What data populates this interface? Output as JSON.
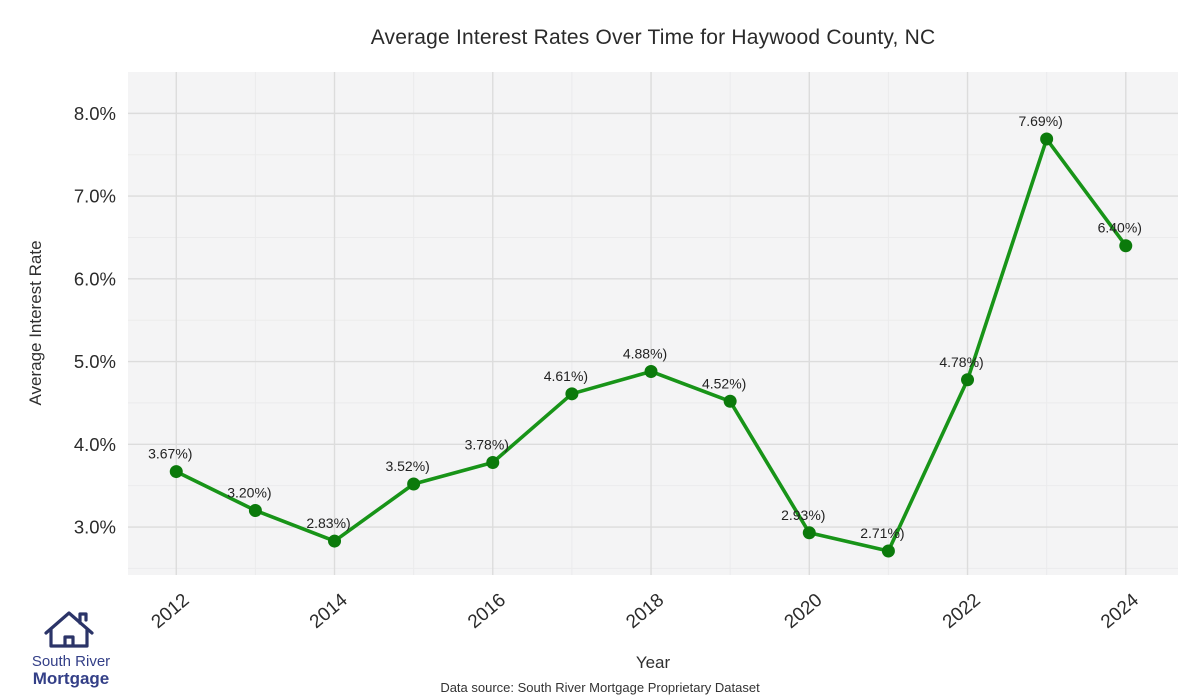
{
  "chart_data": {
    "type": "line",
    "title": "Average Interest Rates Over Time for Haywood County, NC",
    "xlabel": "Year",
    "ylabel": "Average Interest Rate",
    "x": [
      2012,
      2013,
      2014,
      2015,
      2016,
      2017,
      2018,
      2019,
      2020,
      2021,
      2022,
      2023,
      2024
    ],
    "values": [
      3.67,
      3.2,
      2.83,
      3.52,
      3.78,
      4.61,
      4.88,
      4.52,
      2.93,
      2.71,
      4.78,
      7.69,
      6.4
    ],
    "point_labels": [
      "3.67%)",
      "3.20%)",
      "2.83%)",
      "3.52%)",
      "3.78%)",
      "4.61%)",
      "4.88%)",
      "4.52%)",
      "2.93%)",
      "2.71%)",
      "4.78%)",
      "7.69%)",
      "6.40%)"
    ],
    "xticks": [
      2012,
      2014,
      2016,
      2018,
      2020,
      2022,
      2024
    ],
    "xtick_labels": [
      "2012",
      "2014",
      "2016",
      "2018",
      "2020",
      "2022",
      "2024"
    ],
    "yticks": [
      3,
      4,
      5,
      6,
      7,
      8
    ],
    "ytick_labels": [
      "3.0%",
      "4.0%",
      "5.0%",
      "6.0%",
      "7.0%",
      "8.0%"
    ],
    "xlim": [
      2011.39,
      2024.66
    ],
    "ylim": [
      2.42,
      8.5
    ],
    "grid": true,
    "legend": "none",
    "line_color": "#189418",
    "marker_color": "#0b7a0b",
    "panel_bg": "#f4f4f5",
    "grid_color": "#dcdcdc",
    "minor_grid_color": "#ebebec",
    "label_color": "#222222",
    "tick_color": "#2b2b2b"
  },
  "footer": {
    "source": "Data source: South River Mortgage Proprietary Dataset"
  },
  "logo": {
    "line1": "South River",
    "line2": "Mortgage",
    "color": "#333f87"
  }
}
